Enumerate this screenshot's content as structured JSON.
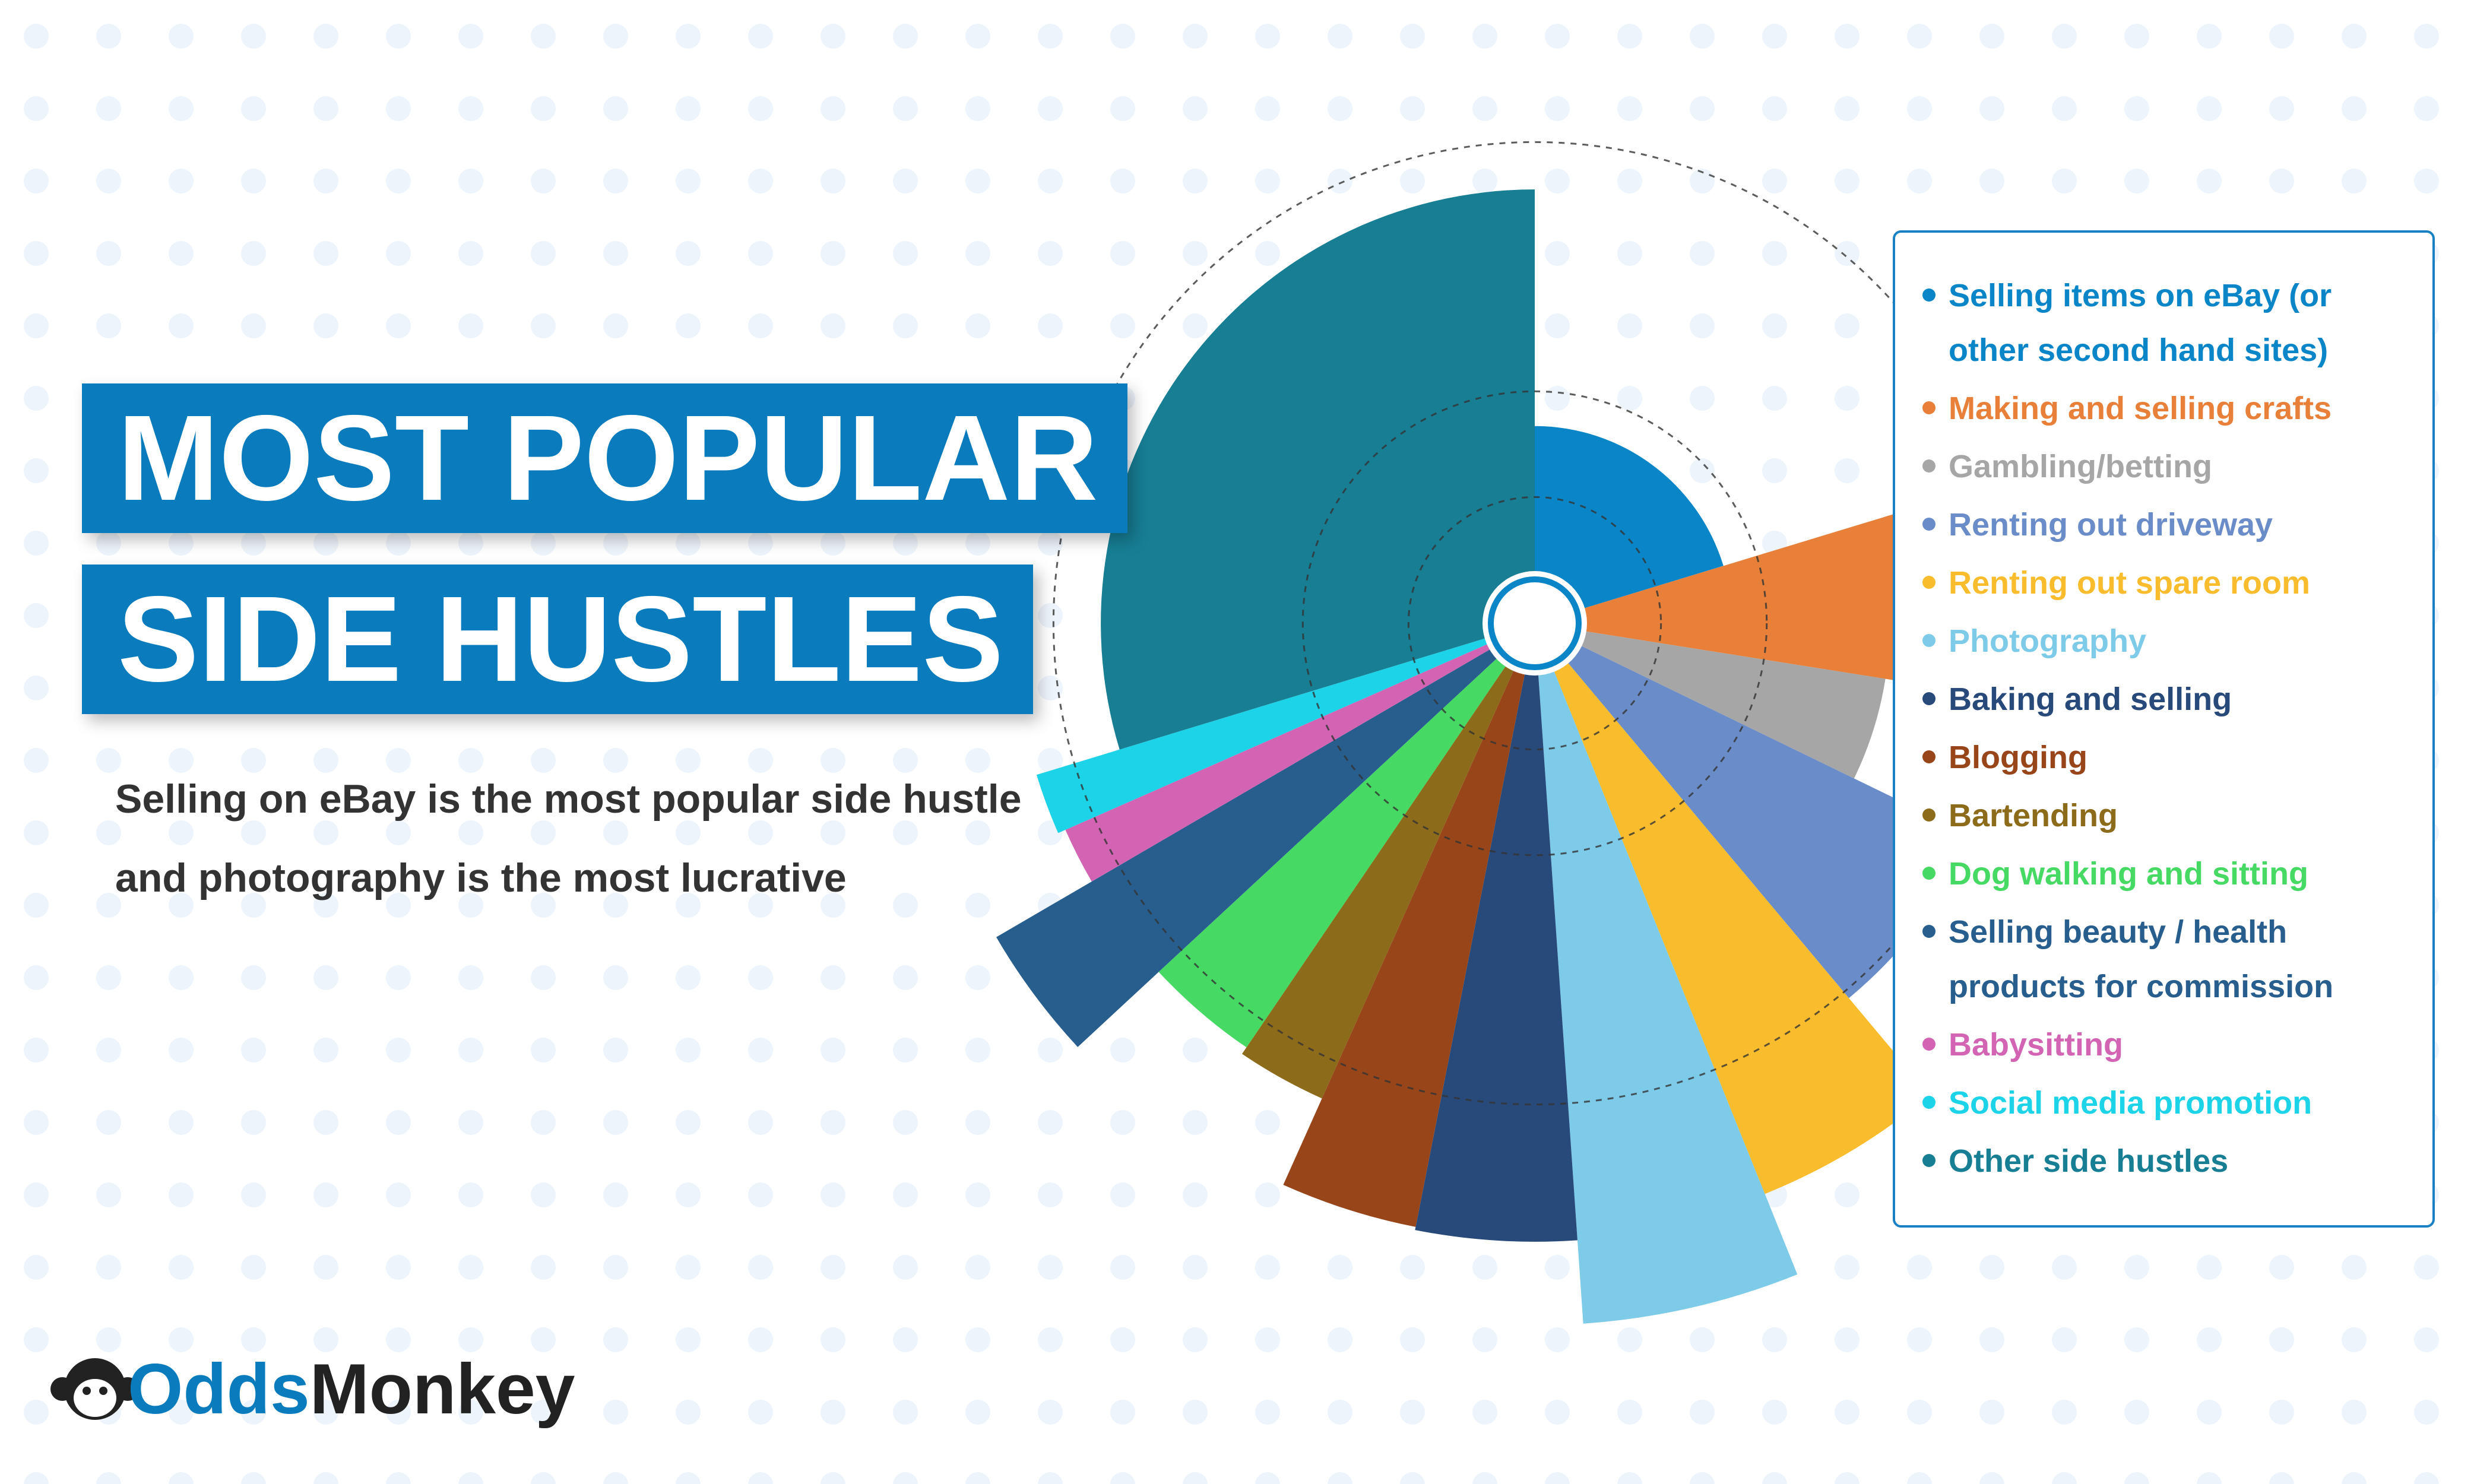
{
  "title_lines": [
    "MOST POPULAR",
    "SIDE HUSTLES"
  ],
  "subtitle": "Selling on eBay is the most popular side hustle and photography is the most lucrative",
  "logo": [
    "Odds",
    "Monkey"
  ],
  "chart_data": {
    "type": "rose",
    "categories": [
      "Selling items on eBay (or other second hand sites)",
      "Making and selling crafts",
      "Gambling/betting",
      "Renting out driveway",
      "Renting out spare room",
      "Photography",
      "Baking and selling",
      "Blogging",
      "Bartending",
      "Dog walking and sitting",
      "Selling beauty / health products for commission",
      "Babysitting",
      "Social media promotion",
      "Other side hustles"
    ],
    "colors": [
      "#0a86c8",
      "#e8803a",
      "#a6a6a6",
      "#6a8cc9",
      "#f9bc2c",
      "#7dcbe8",
      "#284a7a",
      "#98451a",
      "#8c6b1a",
      "#46d963",
      "#275e8e",
      "#d264b3",
      "#1dd3e8",
      "#177e94"
    ],
    "values": [
      20.3,
      7.2,
      4.7,
      6.7,
      5,
      5,
      4.2,
      3.6,
      2.8,
      3.6,
      3.5,
      1.8,
      1.9,
      29.7
    ],
    "radii": [
      125,
      240,
      225,
      310,
      390,
      445,
      392,
      390,
      330,
      325,
      395,
      325,
      330,
      275
    ],
    "rlim": [
      0,
      450
    ],
    "rticks": [
      80,
      147,
      305
    ]
  }
}
